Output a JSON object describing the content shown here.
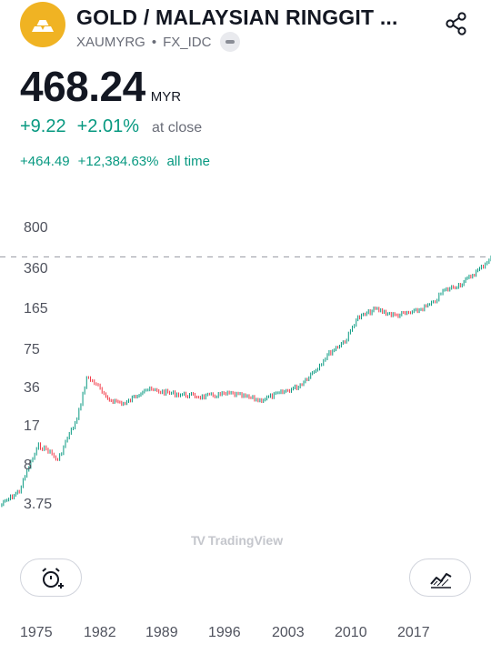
{
  "header": {
    "title": "GOLD / MALAYSIAN RINGGIT ...",
    "symbol": "XAUMYRG",
    "separator": "•",
    "source": "FX_IDC",
    "logo_icon": "gold-bars-icon",
    "share_icon": "share-icon"
  },
  "quote": {
    "price": "468.24",
    "currency": "MYR",
    "change_abs": "+9.22",
    "change_pct": "+2.01%",
    "change_label": "at close",
    "alltime_abs": "+464.49",
    "alltime_pct": "+12,384.63%",
    "alltime_label": "all time"
  },
  "colors": {
    "up": "#089981",
    "down": "#f23645",
    "logo": "#f0b323"
  },
  "chart": {
    "watermark": "TradingView",
    "watermark_mark": "TV"
  },
  "chart_data": {
    "type": "line",
    "scale": "log",
    "y_ticks": [
      "800",
      "360",
      "165",
      "75",
      "36",
      "17",
      "8",
      "3.75"
    ],
    "x_ticks": [
      "1975",
      "1982",
      "1989",
      "1996",
      "2003",
      "2010",
      "2017"
    ],
    "last_value": 468.24,
    "x": [
      1972,
      1974,
      1975,
      1976,
      1977,
      1978,
      1979,
      1980,
      1981,
      1982,
      1983,
      1985,
      1987,
      1990,
      1993,
      1996,
      1999,
      2001,
      2003,
      2005,
      2006,
      2008,
      2009,
      2011,
      2013,
      2015,
      2017,
      2018,
      2020,
      2022,
      2023
    ],
    "y": [
      3.75,
      5,
      8,
      12,
      11,
      9,
      14,
      20,
      45,
      40,
      30,
      27,
      36,
      33,
      31,
      33,
      29,
      33,
      38,
      55,
      70,
      95,
      140,
      170,
      150,
      160,
      190,
      240,
      280,
      380,
      468.24
    ]
  },
  "actions": {
    "alert_icon": "add-alert-icon",
    "chart_icon": "full-chart-icon"
  }
}
